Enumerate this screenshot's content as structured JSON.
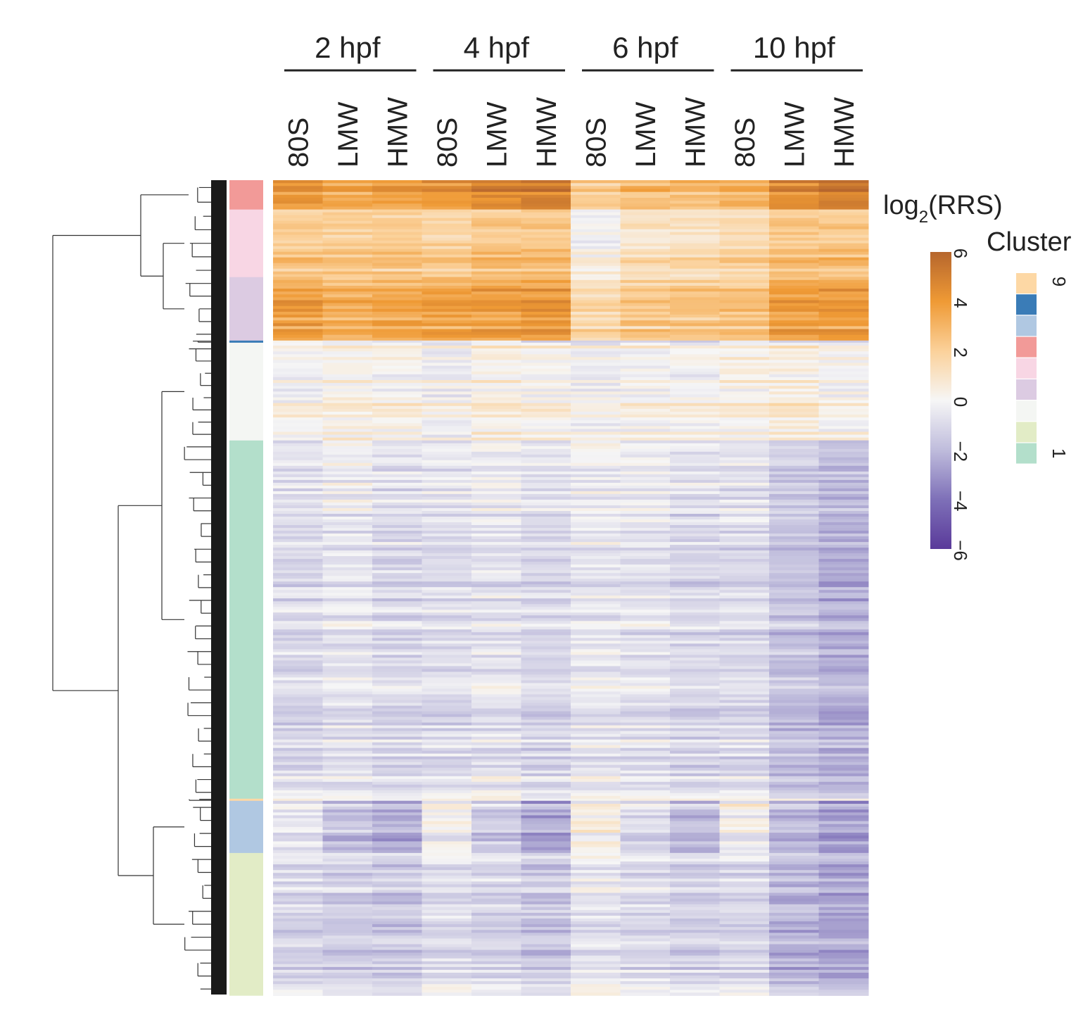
{
  "chart_data": {
    "type": "heatmap",
    "title": "",
    "groups": [
      {
        "label": "2 hpf",
        "columns": [
          "80S",
          "LMW",
          "HMW"
        ]
      },
      {
        "label": "4 hpf",
        "columns": [
          "80S",
          "LMW",
          "HMW"
        ]
      },
      {
        "label": "6 hpf",
        "columns": [
          "80S",
          "LMW",
          "HMW"
        ]
      },
      {
        "label": "10 hpf",
        "columns": [
          "80S",
          "LMW",
          "HMW"
        ]
      }
    ],
    "colorbar": {
      "title_main": "log",
      "title_sub": "2",
      "title_rest": "(RRS)",
      "range": [
        -6,
        6
      ],
      "ticks": [
        6,
        4,
        2,
        0,
        -2,
        -4,
        -6
      ],
      "tick_labels": [
        "6",
        "4",
        "2",
        "0",
        "−2",
        "−4",
        "−6"
      ],
      "colors": [
        "#5a3a9a",
        "#7e70b8",
        "#bfbcdc",
        "#f6f6f6",
        "#fbd19a",
        "#ef9a35",
        "#b6662d"
      ]
    },
    "cluster_legend": {
      "title": "Cluster",
      "top_label": "9",
      "bottom_label": "1",
      "colors": [
        "#fdd8a5",
        "#3a7cb7",
        "#b0c8e2",
        "#f29a98",
        "#f8d6e4",
        "#dccbe2",
        "#f4f6f3",
        "#e2ecc6",
        "#b3dfcb"
      ]
    },
    "clusters": [
      {
        "cluster": 7,
        "color": "#f29a98",
        "rel_size": 0.036,
        "values": [
          4.2,
          3.6,
          3.9,
          4.2,
          4.8,
          5.0,
          2.2,
          2.8,
          2.8,
          3.2,
          4.6,
          5.4
        ]
      },
      {
        "cluster": 6,
        "color": "#f8d6e4",
        "rel_size": 0.083,
        "values": [
          2.3,
          2.3,
          2.3,
          2.1,
          2.6,
          2.6,
          0.3,
          1.3,
          1.3,
          1.8,
          2.6,
          2.6
        ]
      },
      {
        "cluster": 5,
        "color": "#dccbe2",
        "rel_size": 0.078,
        "values": [
          3.6,
          3.0,
          3.3,
          3.5,
          3.6,
          3.8,
          1.4,
          2.1,
          2.3,
          2.3,
          3.6,
          3.8
        ]
      },
      {
        "cluster": 8,
        "color": "#3a7cb7",
        "rel_size": 0.002,
        "values": [
          0.4,
          0.0,
          -0.4,
          0.3,
          0.0,
          -0.5,
          -0.3,
          -0.6,
          -0.9,
          0.3,
          -0.6,
          -1.2
        ]
      },
      {
        "cluster": 4,
        "color": "#f4f6f3",
        "rel_size": 0.12,
        "values": [
          0.2,
          0.5,
          0.4,
          0.0,
          0.6,
          0.4,
          0.0,
          0.2,
          0.2,
          0.5,
          0.7,
          0.3
        ]
      },
      {
        "cluster": 1,
        "color": "#b3dfcb",
        "rel_size": 0.44,
        "values": [
          -0.9,
          -0.6,
          -1.0,
          -0.8,
          -0.6,
          -1.0,
          -0.5,
          -0.6,
          -1.0,
          -0.9,
          -1.7,
          -2.2
        ]
      },
      {
        "cluster": 9,
        "color": "#fdd8a5",
        "rel_size": 0.002,
        "values": [
          0.3,
          0.3,
          0.3,
          0.3,
          0.3,
          0.3,
          0.3,
          0.3,
          0.3,
          0.3,
          0.3,
          0.3
        ]
      },
      {
        "cluster": 3,
        "color": "#b0c8e2",
        "rel_size": 0.064,
        "values": [
          -0.6,
          -1.6,
          -2.3,
          0.1,
          -1.4,
          -2.4,
          0.4,
          -0.9,
          -1.9,
          0.1,
          -2.0,
          -2.6
        ]
      },
      {
        "cluster": 2,
        "color": "#e2ecc6",
        "rel_size": 0.175,
        "values": [
          -1.0,
          -1.3,
          -1.5,
          -0.8,
          -1.2,
          -1.5,
          -0.6,
          -0.9,
          -1.2,
          -1.0,
          -2.1,
          -2.5
        ]
      }
    ]
  }
}
